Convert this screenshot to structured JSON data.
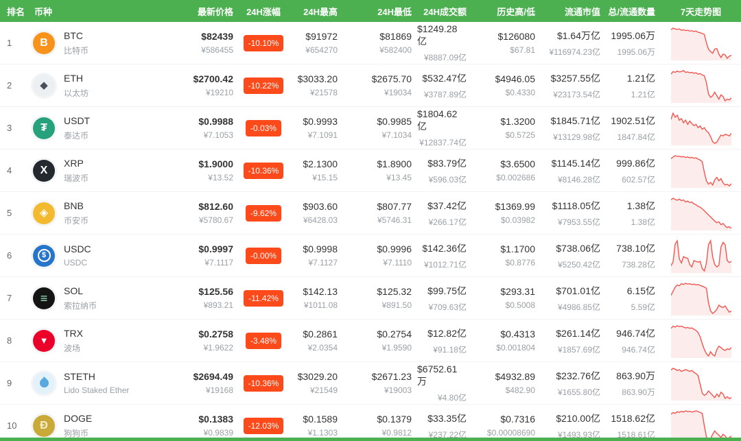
{
  "colors": {
    "header_bg": "#4caf50",
    "badge_bg": "#fc4a1a",
    "spark_stroke": "#f2554e",
    "spark_fill": "#fdecec"
  },
  "header": {
    "columns": [
      "排名",
      "币种",
      "最新价格",
      "24H涨幅",
      "24H最高",
      "24H最低",
      "24H成交额",
      "历史高/低",
      "流通市值",
      "总/流通数量",
      "7天走势图"
    ]
  },
  "coins": [
    {
      "rank": "1",
      "symbol": "BTC",
      "name": "比特币",
      "icon": {
        "name": "btc-icon",
        "bg": "#F7931A",
        "fg": "#ffffff",
        "glyph": "B",
        "shape": "glyph"
      },
      "price_usd": "$82439",
      "price_cny": "¥586455",
      "change": "-10.10%",
      "high_usd": "$91972",
      "high_cny": "¥654270",
      "low_usd": "$81869",
      "low_cny": "¥582400",
      "vol_usd": "$1249.28亿",
      "vol_cny": "¥8887.09亿",
      "hist_high": "$126080",
      "hist_low": "$67.81",
      "mcap_usd": "$1.64万亿",
      "mcap_cny": "¥116974.23亿",
      "supply_total": "1995.06万",
      "supply_circ": "1995.06万",
      "spark": [
        86,
        90,
        88,
        87,
        88,
        85,
        86,
        84,
        85,
        83,
        84,
        82,
        83,
        80,
        79,
        77,
        75,
        55,
        40,
        34,
        30,
        40,
        41,
        28,
        20,
        28,
        26,
        18,
        23,
        25
      ]
    },
    {
      "rank": "2",
      "symbol": "ETH",
      "name": "以太坊",
      "icon": {
        "name": "eth-icon",
        "bg": "#edf0f2",
        "fg": "#49505a",
        "glyph": "◆",
        "shape": "glyph"
      },
      "price_usd": "$2700.42",
      "price_cny": "¥19210",
      "change": "-10.22%",
      "high_usd": "$3033.20",
      "high_cny": "¥21578",
      "low_usd": "$2675.70",
      "low_cny": "¥19034",
      "vol_usd": "$532.47亿",
      "vol_cny": "¥3787.89亿",
      "hist_high": "$4946.05",
      "hist_low": "$0.4330",
      "mcap_usd": "$3257.55亿",
      "mcap_cny": "¥23173.54亿",
      "supply_total": "1.21亿",
      "supply_circ": "1.21亿",
      "spark": [
        78,
        84,
        82,
        85,
        83,
        84,
        86,
        82,
        83,
        81,
        82,
        80,
        81,
        78,
        79,
        76,
        74,
        58,
        32,
        24,
        28,
        36,
        28,
        20,
        30,
        26,
        16,
        20,
        18,
        23
      ]
    },
    {
      "rank": "3",
      "symbol": "USDT",
      "name": "泰达币",
      "icon": {
        "name": "usdt-icon",
        "bg": "#26A17B",
        "fg": "#ffffff",
        "glyph": "₮",
        "shape": "glyph"
      },
      "price_usd": "$0.9988",
      "price_cny": "¥7.1053",
      "change": "-0.03%",
      "high_usd": "$0.9993",
      "high_cny": "¥7.1091",
      "low_usd": "$0.9985",
      "low_cny": "¥7.1034",
      "vol_usd": "$1804.62亿",
      "vol_cny": "¥12837.74亿",
      "hist_high": "$1.3200",
      "hist_low": "$0.5725",
      "mcap_usd": "$1845.71亿",
      "mcap_cny": "¥13129.98亿",
      "supply_total": "1902.51亿",
      "supply_circ": "1847.84亿",
      "spark": [
        70,
        85,
        75,
        80,
        68,
        72,
        62,
        68,
        58,
        66,
        60,
        55,
        58,
        50,
        54,
        46,
        50,
        42,
        38,
        28,
        16,
        12,
        15,
        24,
        32,
        30,
        34,
        32,
        30,
        36
      ]
    },
    {
      "rank": "4",
      "symbol": "XRP",
      "name": "瑞波币",
      "icon": {
        "name": "xrp-icon",
        "bg": "#23292F",
        "fg": "#ffffff",
        "glyph": "X",
        "shape": "glyph"
      },
      "price_usd": "$1.9000",
      "price_cny": "¥13.52",
      "change": "-10.36%",
      "high_usd": "$2.1300",
      "high_cny": "¥15.15",
      "low_usd": "$1.8900",
      "low_cny": "¥13.45",
      "vol_usd": "$83.79亿",
      "vol_cny": "¥596.03亿",
      "hist_high": "$3.6500",
      "hist_low": "$0.002686",
      "mcap_usd": "$1145.14亿",
      "mcap_cny": "¥8146.28亿",
      "supply_total": "999.86亿",
      "supply_circ": "602.57亿",
      "spark": [
        80,
        84,
        87,
        85,
        86,
        84,
        85,
        83,
        84,
        82,
        83,
        81,
        82,
        79,
        77,
        73,
        48,
        28,
        20,
        24,
        18,
        30,
        36,
        28,
        33,
        23,
        18,
        20,
        16,
        21
      ]
    },
    {
      "rank": "5",
      "symbol": "BNB",
      "name": "币安币",
      "icon": {
        "name": "bnb-icon",
        "bg": "#F3BA2F",
        "fg": "#ffffff",
        "glyph": "◈",
        "shape": "glyph"
      },
      "price_usd": "$812.60",
      "price_cny": "¥5780.67",
      "change": "-9.62%",
      "high_usd": "$903.60",
      "high_cny": "¥6428.03",
      "low_usd": "$807.77",
      "low_cny": "¥5746.31",
      "vol_usd": "$37.42亿",
      "vol_cny": "¥266.17亿",
      "hist_high": "$1369.99",
      "hist_low": "$0.03982",
      "mcap_usd": "$1118.05亿",
      "mcap_cny": "¥7953.55亿",
      "supply_total": "1.38亿",
      "supply_circ": "1.38亿",
      "spark": [
        84,
        88,
        85,
        83,
        86,
        82,
        84,
        79,
        81,
        77,
        79,
        74,
        72,
        68,
        66,
        62,
        57,
        52,
        47,
        42,
        37,
        32,
        28,
        30,
        23,
        26,
        20,
        16,
        18,
        14
      ]
    },
    {
      "rank": "6",
      "symbol": "USDC",
      "name": "USDC",
      "icon": {
        "name": "usdc-icon",
        "bg": "#2775CA",
        "fg": "#ffffff",
        "glyph": "$",
        "shape": "ring"
      },
      "price_usd": "$0.9997",
      "price_cny": "¥7.1117",
      "change": "-0.00%",
      "high_usd": "$0.9998",
      "high_cny": "¥7.1127",
      "low_usd": "$0.9996",
      "low_cny": "¥7.1110",
      "vol_usd": "$142.36亿",
      "vol_cny": "¥1012.71亿",
      "hist_high": "$1.1700",
      "hist_low": "$0.8776",
      "mcap_usd": "$738.06亿",
      "mcap_cny": "¥5250.42亿",
      "supply_total": "738.10亿",
      "supply_circ": "738.28亿",
      "spark": [
        25,
        35,
        80,
        88,
        42,
        32,
        48,
        45,
        44,
        28,
        22,
        38,
        36,
        34,
        36,
        18,
        12,
        32,
        78,
        88,
        48,
        28,
        22,
        26,
        72,
        84,
        78,
        38,
        33,
        36
      ]
    },
    {
      "rank": "7",
      "symbol": "SOL",
      "name": "索拉纳币",
      "icon": {
        "name": "sol-icon",
        "bg": "#141414",
        "fg": "#9fe8c8",
        "glyph": "≡",
        "shape": "glyph"
      },
      "price_usd": "$125.56",
      "price_cny": "¥893.21",
      "change": "-11.42%",
      "high_usd": "$142.13",
      "high_cny": "¥1011.08",
      "low_usd": "$125.32",
      "low_cny": "¥891.50",
      "vol_usd": "$99.75亿",
      "vol_cny": "¥709.63亿",
      "hist_high": "$293.31",
      "hist_low": "$0.5008",
      "mcap_usd": "$701.01亿",
      "mcap_cny": "¥4986.85亿",
      "supply_total": "6.15亿",
      "supply_circ": "5.59亿",
      "spark": [
        55,
        65,
        75,
        80,
        78,
        83,
        81,
        84,
        82,
        83,
        81,
        82,
        80,
        81,
        79,
        77,
        75,
        72,
        38,
        18,
        12,
        16,
        22,
        32,
        28,
        26,
        30,
        22,
        15,
        18
      ]
    },
    {
      "rank": "8",
      "symbol": "TRX",
      "name": "波场",
      "icon": {
        "name": "trx-icon",
        "bg": "#EB0029",
        "fg": "#ffffff",
        "glyph": "▼",
        "shape": "glyph"
      },
      "price_usd": "$0.2758",
      "price_cny": "¥1.9622",
      "change": "-3.48%",
      "high_usd": "$0.2861",
      "high_cny": "¥2.0354",
      "low_usd": "$0.2754",
      "low_cny": "¥1.9590",
      "vol_usd": "$12.82亿",
      "vol_cny": "¥91.18亿",
      "hist_high": "$0.4313",
      "hist_low": "$0.001804",
      "mcap_usd": "$261.14亿",
      "mcap_cny": "¥1857.69亿",
      "supply_total": "946.74亿",
      "supply_circ": "946.74亿",
      "spark": [
        78,
        83,
        81,
        84,
        82,
        83,
        81,
        79,
        80,
        78,
        79,
        76,
        73,
        68,
        58,
        42,
        28,
        18,
        13,
        23,
        16,
        13,
        28,
        36,
        33,
        28,
        26,
        30,
        28,
        33
      ]
    },
    {
      "rank": "9",
      "symbol": "STETH",
      "name": "Lido Staked Ether",
      "icon": {
        "name": "steth-icon",
        "bg": "#e3f1fb",
        "fg": "#58a9e0",
        "glyph": "",
        "shape": "drop"
      },
      "price_usd": "$2694.49",
      "price_cny": "¥19168",
      "change": "-10.36%",
      "high_usd": "$3029.20",
      "high_cny": "¥21549",
      "low_usd": "$2671.23",
      "low_cny": "¥19003",
      "vol_usd": "$6752.61万",
      "vol_cny": "¥4.80亿",
      "hist_high": "$4932.89",
      "hist_low": "$482.90",
      "mcap_usd": "$232.76亿",
      "mcap_cny": "¥1655.80亿",
      "supply_total": "863.90万",
      "supply_circ": "863.90万",
      "spark": [
        80,
        84,
        82,
        79,
        81,
        77,
        79,
        81,
        79,
        77,
        79,
        75,
        72,
        68,
        48,
        28,
        23,
        26,
        33,
        28,
        23,
        18,
        26,
        20,
        30,
        26,
        16,
        20,
        16,
        18
      ]
    },
    {
      "rank": "10",
      "symbol": "DOGE",
      "name": "狗狗币",
      "icon": {
        "name": "doge-icon",
        "bg": "#C9AA39",
        "fg": "#f6edd1",
        "glyph": "Ð",
        "shape": "glyph"
      },
      "price_usd": "$0.1383",
      "price_cny": "¥0.9839",
      "change": "-12.03%",
      "high_usd": "$0.1589",
      "high_cny": "¥1.1303",
      "low_usd": "$0.1379",
      "low_cny": "¥0.9812",
      "vol_usd": "$33.35亿",
      "vol_cny": "¥237.22亿",
      "hist_high": "$0.7316",
      "hist_low": "$0.00008690",
      "mcap_usd": "$210.00亿",
      "mcap_cny": "¥1493.93亿",
      "supply_total": "1518.62亿",
      "supply_circ": "1518.61亿",
      "spark": [
        76,
        80,
        78,
        82,
        80,
        83,
        81,
        84,
        82,
        83,
        81,
        82,
        84,
        82,
        80,
        78,
        48,
        22,
        12,
        18,
        28,
        36,
        30,
        26,
        20,
        28,
        24,
        18,
        20,
        24
      ]
    }
  ]
}
